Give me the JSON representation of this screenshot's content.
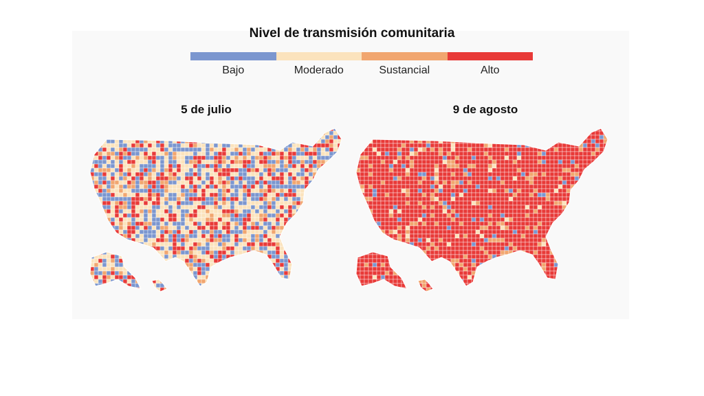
{
  "legend": {
    "title": "Nivel de transmisión comunitaria",
    "levels": [
      {
        "label": "Bajo",
        "color": "#7b96cf"
      },
      {
        "label": "Moderado",
        "color": "#fbe3bd"
      },
      {
        "label": "Sustancial",
        "color": "#f1a66f"
      },
      {
        "label": "Alto",
        "color": "#e83a38"
      }
    ]
  },
  "maps": [
    {
      "title": "5 de julio",
      "mix": [
        0.28,
        0.37,
        0.12,
        0.23
      ]
    },
    {
      "title": "9 de agosto",
      "mix": [
        0.05,
        0.04,
        0.1,
        0.81
      ]
    }
  ]
}
